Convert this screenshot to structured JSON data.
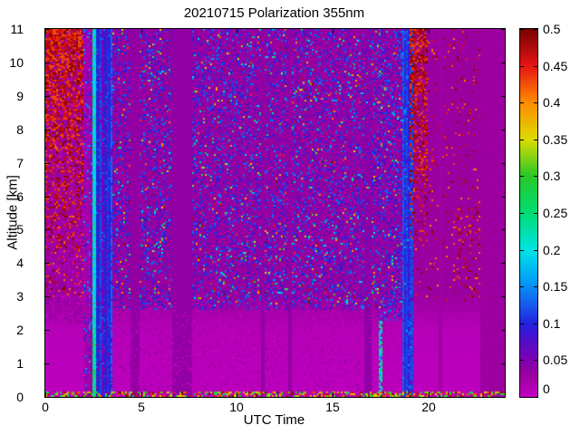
{
  "chart_data": {
    "type": "heatmap",
    "title": "20210715 Polarization 355nm",
    "xlabel": "UTC Time",
    "ylabel": "Altitude [km]",
    "xlim": [
      0,
      24
    ],
    "ylim": [
      0,
      11
    ],
    "clim": [
      0,
      0.5
    ],
    "x_ticks": [
      0,
      5,
      10,
      15,
      20
    ],
    "y_ticks": [
      0,
      1,
      2,
      3,
      4,
      5,
      6,
      7,
      8,
      9,
      10,
      11
    ],
    "colorbar_ticks": [
      "0",
      "0.05",
      "0.1",
      "0.15",
      "0.2",
      "0.25",
      "0.3",
      "0.35",
      "0.4",
      "0.45",
      "0.5"
    ],
    "colorbar_tick_values": [
      0,
      0.05,
      0.1,
      0.15,
      0.2,
      0.25,
      0.3,
      0.35,
      0.4,
      0.45,
      0.5
    ],
    "colormap": [
      {
        "v": 0.0,
        "color": "#C400C4"
      },
      {
        "v": 0.03,
        "color": "#9A009E"
      },
      {
        "v": 0.05,
        "color": "#7E00B2"
      },
      {
        "v": 0.08,
        "color": "#4A10CC"
      },
      {
        "v": 0.1,
        "color": "#2222DE"
      },
      {
        "v": 0.13,
        "color": "#1464EE"
      },
      {
        "v": 0.16,
        "color": "#00A2F8"
      },
      {
        "v": 0.2,
        "color": "#00E4E4"
      },
      {
        "v": 0.25,
        "color": "#00DC74"
      },
      {
        "v": 0.3,
        "color": "#28C828"
      },
      {
        "v": 0.35,
        "color": "#DCDC00"
      },
      {
        "v": 0.4,
        "color": "#FF8C00"
      },
      {
        "v": 0.45,
        "color": "#E61414"
      },
      {
        "v": 0.5,
        "color": "#780000"
      }
    ],
    "background": {
      "upper_value": 0.03,
      "upper_jitter": 0.005,
      "boundary_km": 3.1,
      "mid_value": 0.01,
      "mid_jitter": 0.004,
      "low_value": 0.005,
      "low_slope": 0.0025,
      "low_jitter": 0.003
    },
    "features": [
      {
        "kind": "speckle",
        "name": "left-pink-mottle",
        "t": [
          0,
          2.5
        ],
        "alt": [
          2.2,
          11
        ],
        "density": 0.45,
        "v": [
          0.0,
          0.045
        ]
      },
      {
        "kind": "speckle",
        "name": "left-darkred-sparse",
        "t": [
          0,
          2.3
        ],
        "alt": [
          3.0,
          5.5
        ],
        "density": 0.1,
        "v": [
          0.4,
          0.5
        ]
      },
      {
        "kind": "speckle",
        "name": "darkred-patch-left",
        "t": [
          0,
          1.95
        ],
        "alt": [
          4.3,
          11
        ],
        "density": [
          0.1,
          0.88
        ],
        "v": [
          0.42,
          0.5
        ]
      },
      {
        "kind": "stripes",
        "name": "violet-band",
        "t": [
          1.95,
          2.5
        ],
        "alt": [
          0,
          11
        ],
        "values": [
          0.016,
          0.022,
          0.03,
          0.045,
          0.02
        ],
        "jitter": 0.006,
        "speckleDensity": 0.18,
        "speckleV": [
          0.07,
          0.17
        ]
      },
      {
        "kind": "stripes",
        "name": "cyan-line",
        "t": [
          2.5,
          2.64
        ],
        "alt": [
          0,
          11
        ],
        "values": [
          0.17,
          0.19,
          0.21
        ],
        "jitter": 0.015,
        "speckleDensity": 0.25,
        "speckleV": [
          0.2,
          0.3
        ]
      },
      {
        "kind": "speckle",
        "name": "cyan-line-low",
        "t": [
          2.5,
          2.64
        ],
        "alt": [
          0,
          2.2
        ],
        "density": 0.9,
        "v": [
          0.18,
          0.3
        ]
      },
      {
        "kind": "stripes",
        "name": "blue-stripe-group-1",
        "t": [
          2.64,
          3.45
        ],
        "alt": [
          0,
          11
        ],
        "values": [
          0.1,
          0.12,
          0.085,
          0.05,
          0.11,
          0.13
        ],
        "jitter": 0.01,
        "speckleDensity": 0.25,
        "speckleV": [
          0.03,
          0.14
        ]
      },
      {
        "kind": "speckle",
        "name": "noise-3p5-4p4",
        "t": [
          3.45,
          4.4
        ],
        "alt": [
          2.6,
          11
        ],
        "density": 0.34,
        "v": [
          0.035,
          0.13
        ],
        "tail": 0.1,
        "tailV": [
          0.13,
          0.5
        ]
      },
      {
        "kind": "solid",
        "name": "gap-band-1",
        "t": [
          4.4,
          4.95
        ],
        "alt": [
          0,
          11
        ],
        "v": 0.036,
        "jitter": 0.003
      },
      {
        "kind": "speckle",
        "name": "noise-5-6p6",
        "t": [
          4.95,
          6.6
        ],
        "alt": [
          2.6,
          11
        ],
        "density": 0.36,
        "v": [
          0.035,
          0.14
        ],
        "tail": 0.12,
        "tailV": [
          0.14,
          0.5
        ]
      },
      {
        "kind": "solid",
        "name": "gap-band-2",
        "t": [
          6.6,
          7.62
        ],
        "alt": [
          0,
          11
        ],
        "v": 0.036,
        "jitter": 0.003
      },
      {
        "kind": "speckle",
        "name": "main-noise",
        "t": [
          7.62,
          17.3
        ],
        "alt": [
          2.6,
          11
        ],
        "density": 0.34,
        "v": [
          0.035,
          0.14
        ],
        "tail": 0.12,
        "tailV": [
          0.14,
          0.5
        ]
      },
      {
        "kind": "speckle",
        "name": "main-noise-low",
        "t": [
          3.45,
          18.6
        ],
        "alt": [
          0,
          2.6
        ],
        "density": 0.2,
        "v": [
          0.0,
          0.03
        ]
      },
      {
        "kind": "solid",
        "name": "thin-gap-1",
        "t": [
          11.25,
          11.45
        ],
        "alt": [
          0,
          11
        ],
        "v": 0.036,
        "jitter": 0.002
      },
      {
        "kind": "solid",
        "name": "thin-gap-2",
        "t": [
          12.68,
          12.84
        ],
        "alt": [
          0,
          11
        ],
        "v": 0.036,
        "jitter": 0.002
      },
      {
        "kind": "solid",
        "name": "subtle-dark-band",
        "t": [
          16.6,
          17.05
        ],
        "alt": [
          0,
          11
        ],
        "v": 0.038,
        "jitter": 0.004
      },
      {
        "kind": "speckle",
        "name": "subtle-dark-band-noise",
        "t": [
          16.6,
          17.05
        ],
        "alt": [
          2.6,
          11
        ],
        "density": 0.18,
        "v": [
          0.035,
          0.13
        ],
        "tail": 0.08,
        "tailV": [
          0.13,
          0.45
        ]
      },
      {
        "kind": "speckle",
        "name": "cyan-low-17p5",
        "t": [
          17.4,
          17.58
        ],
        "alt": [
          0,
          2.3
        ],
        "density": 0.85,
        "v": [
          0.15,
          0.27
        ]
      },
      {
        "kind": "speckle",
        "name": "noise-17-18p6",
        "t": [
          17.3,
          18.62
        ],
        "alt": [
          2.3,
          11
        ],
        "density": 0.4,
        "v": [
          0.04,
          0.14
        ],
        "tail": 0.08,
        "tailV": [
          0.14,
          0.45
        ]
      },
      {
        "kind": "stripes",
        "name": "blue-stripe-group-2",
        "t": [
          18.62,
          19.2
        ],
        "alt": [
          0,
          11
        ],
        "values": [
          0.105,
          0.125,
          0.09,
          0.115,
          0.135
        ],
        "jitter": 0.01,
        "speckleDensity": 0.2,
        "speckleV": [
          0.05,
          0.16
        ]
      },
      {
        "kind": "speckle",
        "name": "right-darkred-sparse",
        "t": [
          19.2,
          24
        ],
        "alt": [
          2.8,
          11
        ],
        "density": 0.05,
        "v": [
          0.4,
          0.5
        ]
      },
      {
        "kind": "speckle",
        "name": "right-darkred-mid",
        "t": [
          21.3,
          23.3
        ],
        "alt": [
          3.0,
          5.8
        ],
        "density": 0.1,
        "v": [
          0.4,
          0.5
        ]
      },
      {
        "kind": "speckle",
        "name": "darkred-patch-right",
        "t": [
          19.0,
          19.95
        ],
        "alt": [
          4.3,
          11
        ],
        "density": [
          0.08,
          0.75
        ],
        "v": [
          0.42,
          0.5
        ]
      },
      {
        "kind": "solid",
        "name": "light-line-20p6",
        "t": [
          20.55,
          20.7
        ],
        "alt": [
          0,
          11
        ],
        "v": 0.026,
        "jitter": 0.003
      },
      {
        "kind": "solid",
        "name": "light-band-right",
        "t": [
          22.72,
          24
        ],
        "alt": [
          0,
          11
        ],
        "v": 0.028,
        "jitter": 0.003
      },
      {
        "kind": "speckle",
        "name": "bottom-edge-noise",
        "t": [
          0,
          24
        ],
        "alt": [
          0,
          0.14
        ],
        "density": 0.5,
        "v": [
          0.25,
          0.5
        ]
      }
    ]
  }
}
